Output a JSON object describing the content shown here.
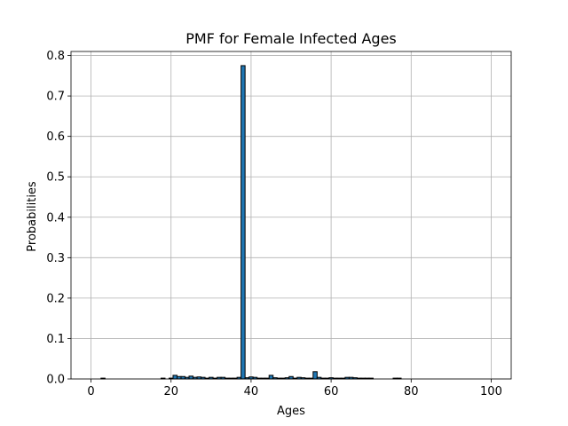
{
  "chart_data": {
    "type": "bar",
    "title": "PMF for Female Infected Ages",
    "xlabel": "Ages",
    "ylabel": "Probabilities",
    "xlim": [
      -5,
      105
    ],
    "ylim": [
      0,
      0.81
    ],
    "grid": true,
    "bar_color": "#1f77b4",
    "edge_color": "#000000",
    "bar_width": 1,
    "x_ticks": [
      0,
      20,
      40,
      60,
      80,
      100
    ],
    "y_ticks": [
      0.0,
      0.1,
      0.2,
      0.3,
      0.4,
      0.5,
      0.6,
      0.7,
      0.8
    ],
    "x_tick_labels": [
      "0",
      "20",
      "40",
      "60",
      "80",
      "100"
    ],
    "y_tick_labels": [
      "0.0",
      "0.1",
      "0.2",
      "0.3",
      "0.4",
      "0.5",
      "0.6",
      "0.7",
      "0.8"
    ],
    "x": [
      3,
      18,
      20,
      21,
      22,
      23,
      24,
      25,
      26,
      27,
      28,
      29,
      30,
      31,
      32,
      33,
      34,
      35,
      36,
      37,
      38,
      39,
      40,
      41,
      42,
      43,
      44,
      45,
      46,
      47,
      48,
      49,
      50,
      51,
      52,
      53,
      54,
      55,
      56,
      57,
      58,
      59,
      60,
      61,
      62,
      63,
      64,
      65,
      66,
      67,
      68,
      69,
      70,
      76,
      77
    ],
    "values": [
      0.002,
      0.002,
      0.002,
      0.009,
      0.006,
      0.006,
      0.004,
      0.007,
      0.004,
      0.005,
      0.004,
      0.002,
      0.004,
      0.002,
      0.004,
      0.004,
      0.002,
      0.002,
      0.002,
      0.004,
      0.775,
      0.003,
      0.005,
      0.004,
      0.002,
      0.002,
      0.002,
      0.009,
      0.003,
      0.002,
      0.002,
      0.003,
      0.006,
      0.002,
      0.004,
      0.003,
      0.002,
      0.002,
      0.018,
      0.004,
      0.002,
      0.002,
      0.003,
      0.002,
      0.002,
      0.002,
      0.004,
      0.004,
      0.003,
      0.002,
      0.002,
      0.002,
      0.002,
      0.002,
      0.002
    ]
  }
}
